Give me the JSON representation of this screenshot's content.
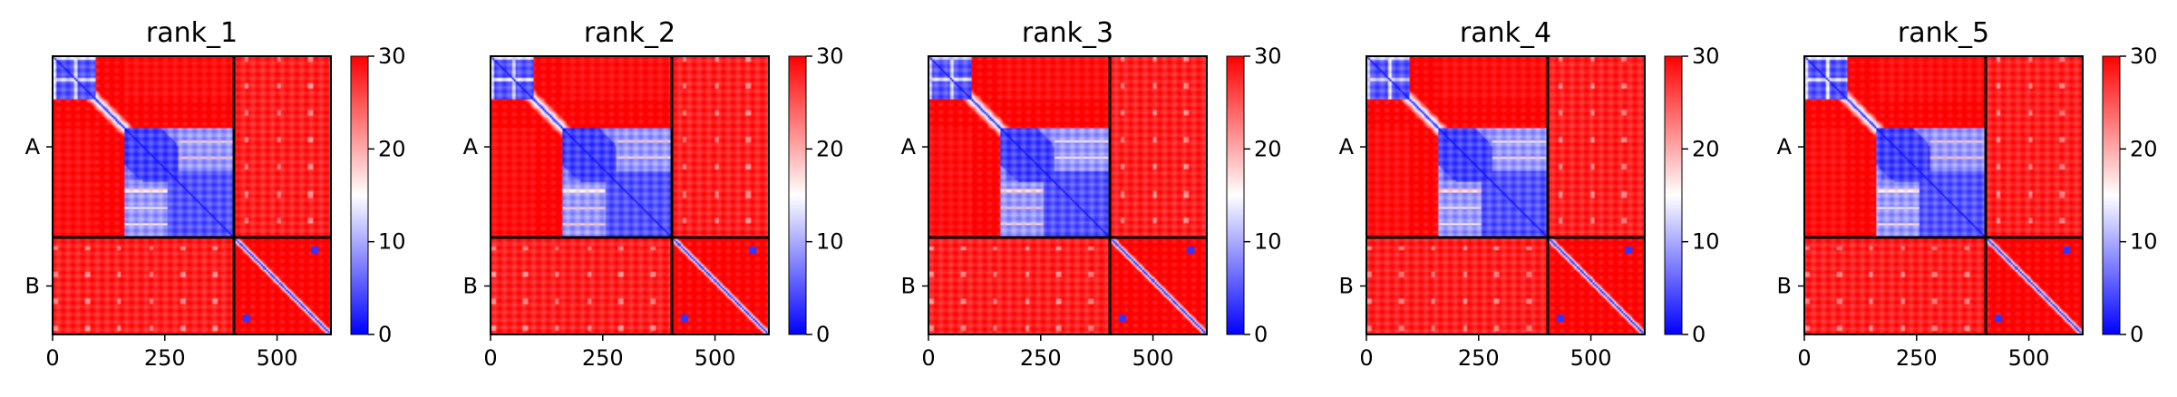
{
  "chart_data": {
    "type": "heatmap",
    "colormap": "bwr",
    "colors": {
      "low": "#0000ff",
      "mid": "#ffffff",
      "high": "#ff0000",
      "divider": "#000000"
    },
    "value_range": [
      0,
      30
    ],
    "grid": false,
    "chain_lengths": {
      "A": 404,
      "B": 216
    },
    "x_range": [
      0,
      620
    ],
    "x_ticks": [
      "0",
      "250",
      "500"
    ],
    "x_tick_values": [
      0,
      250,
      500
    ],
    "chain_labels": [
      "A",
      "B"
    ],
    "colorbar_ticks": [
      "0",
      "10",
      "20",
      "30"
    ],
    "colorbar_tick_values": [
      0,
      10,
      20,
      30
    ],
    "panels": [
      {
        "title": "rank_1"
      },
      {
        "title": "rank_2"
      },
      {
        "title": "rank_3"
      },
      {
        "title": "rank_4"
      },
      {
        "title": "rank_5"
      }
    ]
  }
}
